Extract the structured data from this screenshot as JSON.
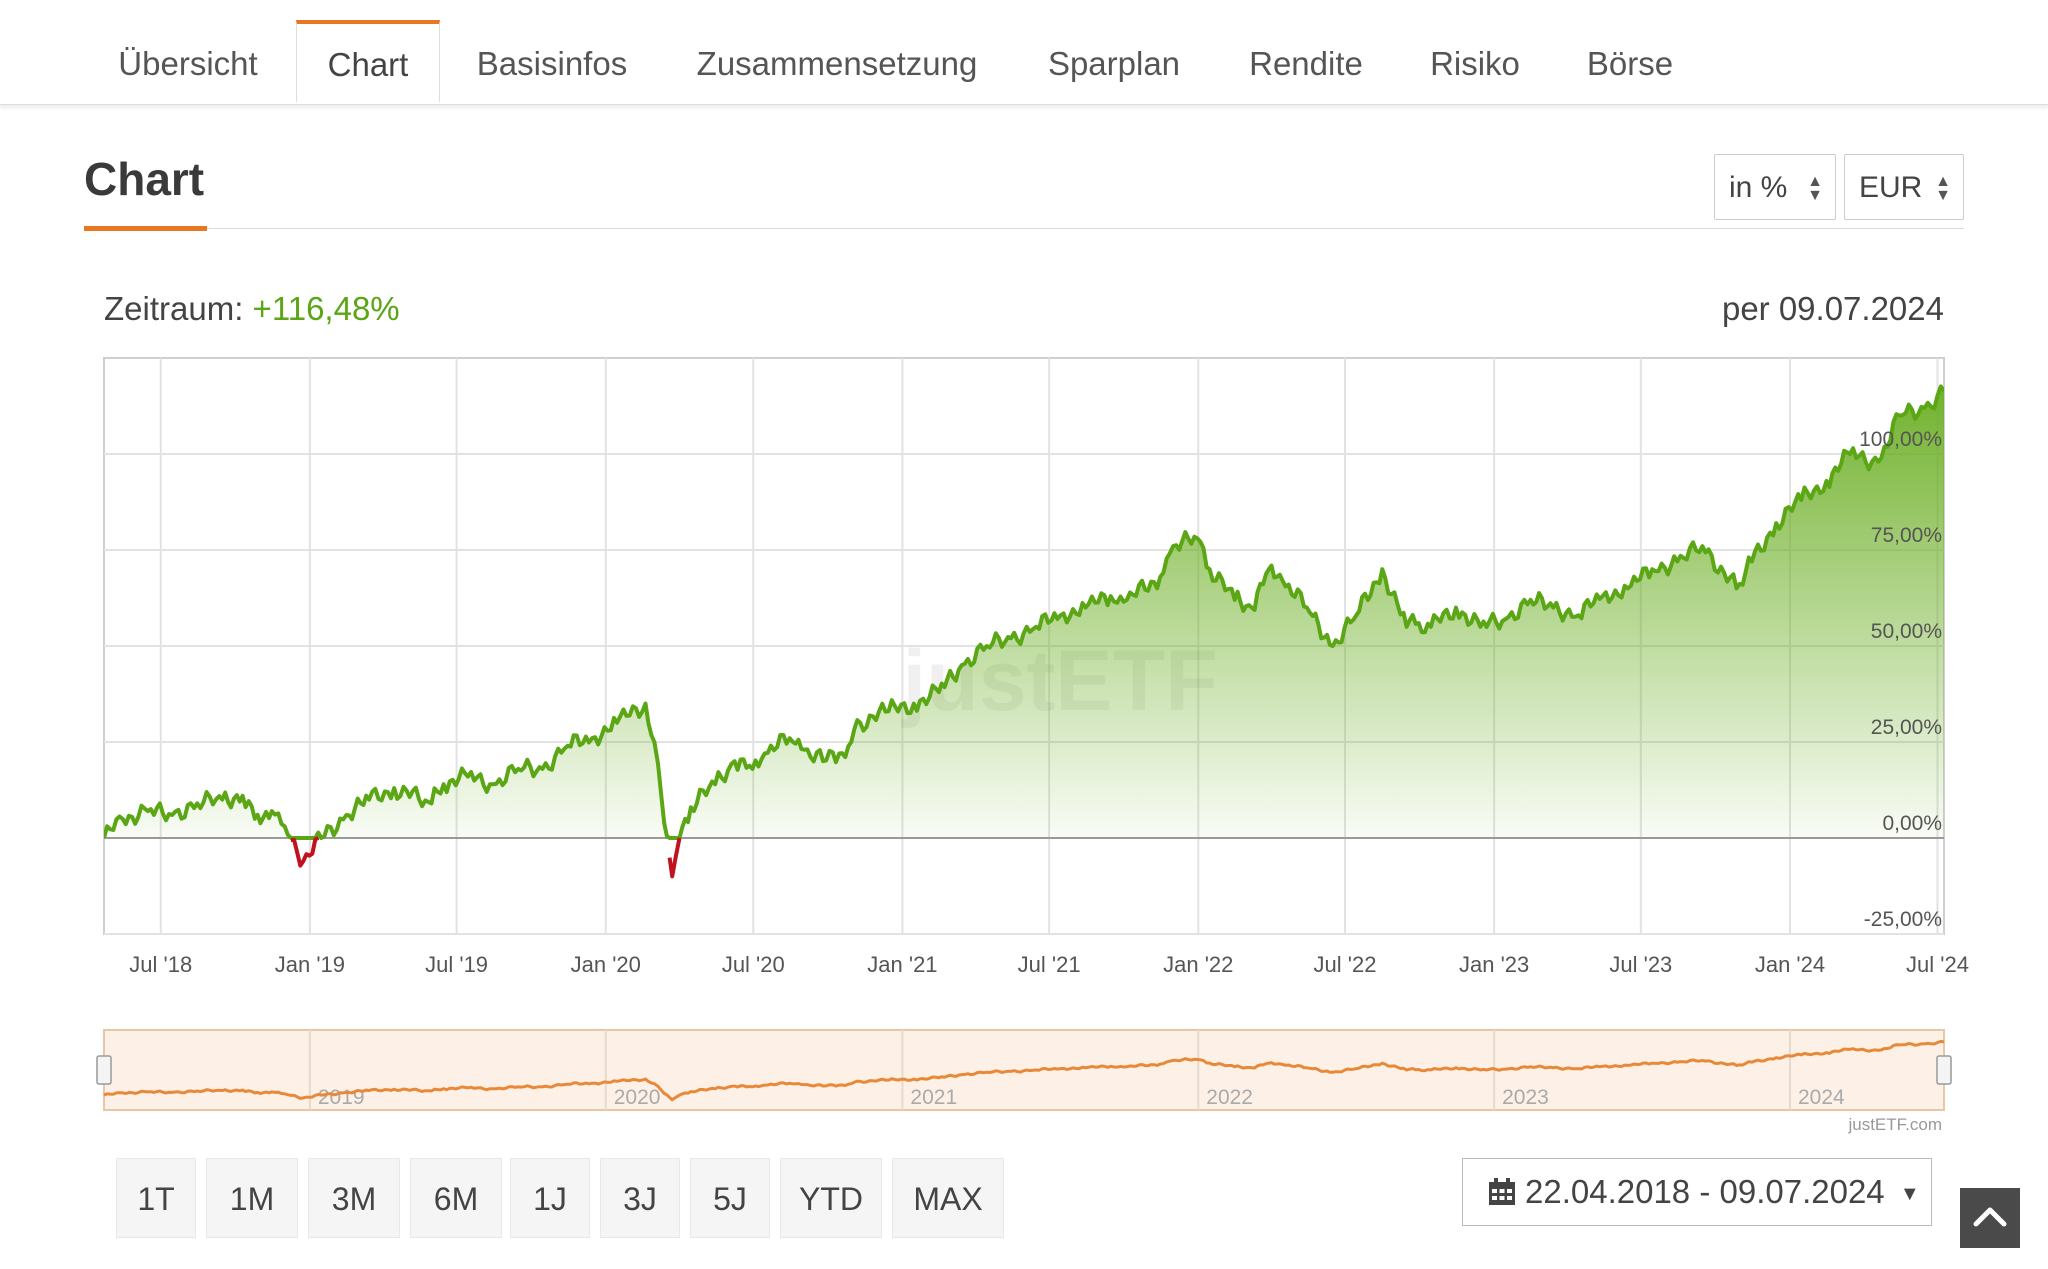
{
  "tabs": [
    {
      "label": "Übersicht",
      "active": false
    },
    {
      "label": "Chart",
      "active": true
    },
    {
      "label": "Basisinfos",
      "active": false
    },
    {
      "label": "Zusammensetzung",
      "active": false
    },
    {
      "label": "Sparplan",
      "active": false
    },
    {
      "label": "Rendite",
      "active": false
    },
    {
      "label": "Risiko",
      "active": false
    },
    {
      "label": "Börse",
      "active": false
    }
  ],
  "section": {
    "title": "Chart",
    "unit_select": "in %",
    "currency_select": "EUR"
  },
  "summary": {
    "period_label": "Zeitraum:",
    "period_value": "+116,48%",
    "as_of": "per 09.07.2024"
  },
  "chart_data": {
    "type": "area",
    "x_tick_labels": [
      "Jul '18",
      "Jan '19",
      "Jul '19",
      "Jan '20",
      "Jul '20",
      "Jan '21",
      "Jul '21",
      "Jan '22",
      "Jul '22",
      "Jan '23",
      "Jul '23",
      "Jan '24",
      "Jul '24"
    ],
    "y_tick_labels": [
      "-25,00%",
      "0,00%",
      "25,00%",
      "50,00%",
      "75,00%",
      "100,00%"
    ],
    "y_ticks": [
      -25,
      0,
      25,
      50,
      75,
      100
    ],
    "ylim": [
      -25,
      125
    ],
    "xlim": [
      "2018-04-22",
      "2024-07-09"
    ],
    "watermark": "justETF",
    "colors": {
      "positive": "#5aa615",
      "negative": "#c1121f",
      "navigator": "#e8893a"
    },
    "series": [
      {
        "x": [
          "2018-04-22",
          "2018-05-15",
          "2018-06-15",
          "2018-07-15",
          "2018-08-15",
          "2018-09-15",
          "2018-10-10",
          "2018-10-25",
          "2018-11-15",
          "2018-12-01",
          "2018-12-24",
          "2019-01-15",
          "2019-02-15",
          "2019-03-15",
          "2019-04-15",
          "2019-05-31",
          "2019-06-15",
          "2019-07-15",
          "2019-08-15",
          "2019-09-15",
          "2019-10-15",
          "2019-11-15",
          "2019-12-15",
          "2020-01-15",
          "2020-02-19",
          "2020-03-01",
          "2020-03-10",
          "2020-03-23",
          "2020-04-01",
          "2020-04-15",
          "2020-05-15",
          "2020-06-08",
          "2020-06-30",
          "2020-07-15",
          "2020-08-15",
          "2020-09-02",
          "2020-09-25",
          "2020-10-15",
          "2020-10-30",
          "2020-11-10",
          "2020-12-15",
          "2021-01-15",
          "2021-02-15",
          "2021-03-15",
          "2021-04-15",
          "2021-05-15",
          "2021-06-15",
          "2021-07-15",
          "2021-08-15",
          "2021-09-15",
          "2021-10-05",
          "2021-11-15",
          "2021-12-01",
          "2021-12-31",
          "2022-01-15",
          "2022-02-15",
          "2022-03-08",
          "2022-03-29",
          "2022-04-15",
          "2022-05-15",
          "2022-06-16",
          "2022-07-15",
          "2022-08-16",
          "2022-09-15",
          "2022-09-30",
          "2022-10-15",
          "2022-11-15",
          "2022-12-15",
          "2023-01-15",
          "2023-02-15",
          "2023-03-15",
          "2023-04-15",
          "2023-05-15",
          "2023-06-15",
          "2023-07-15",
          "2023-08-15",
          "2023-09-15",
          "2023-10-27",
          "2023-11-15",
          "2023-12-15",
          "2024-01-15",
          "2024-02-15",
          "2024-03-15",
          "2024-04-19",
          "2024-05-15",
          "2024-06-15",
          "2024-07-09"
        ],
        "y": [
          0,
          5,
          7,
          6,
          9,
          10,
          11,
          5,
          7,
          3,
          -6,
          0,
          6,
          10,
          13,
          9,
          14,
          16,
          14,
          18,
          18,
          24,
          26,
          30,
          35,
          25,
          10,
          -10,
          0,
          8,
          14,
          20,
          18,
          22,
          26,
          23,
          20,
          22,
          25,
          30,
          33,
          35,
          38,
          45,
          50,
          52,
          55,
          58,
          60,
          63,
          62,
          68,
          76,
          78,
          70,
          62,
          60,
          70,
          67,
          60,
          50,
          58,
          70,
          55,
          56,
          55,
          60,
          55,
          57,
          62,
          60,
          58,
          63,
          65,
          70,
          72,
          76,
          65,
          72,
          82,
          88,
          93,
          100,
          98,
          110,
          112,
          116.48
        ]
      }
    ],
    "navigator_labels": [
      "2019",
      "2020",
      "2021",
      "2022",
      "2023",
      "2024"
    ],
    "credit": "justETF.com"
  },
  "range_buttons": [
    "1T",
    "1M",
    "3M",
    "6M",
    "1J",
    "3J",
    "5J",
    "YTD",
    "MAX"
  ],
  "date_range": "22.04.2018 - 09.07.2024"
}
